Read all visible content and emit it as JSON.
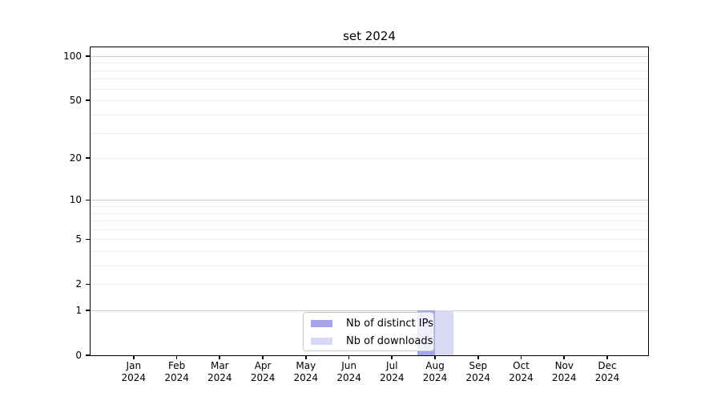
{
  "chart_data": {
    "type": "bar",
    "title": "set 2024",
    "categories": [
      "Jan",
      "Feb",
      "Mar",
      "Apr",
      "May",
      "Jun",
      "Jul",
      "Aug",
      "Sep",
      "Oct",
      "Nov",
      "Dec"
    ],
    "category_year": "2024",
    "series": [
      {
        "name": "Nb of distinct IPs",
        "color": "#a5a5ec",
        "values": [
          0,
          0,
          0,
          0,
          0,
          0,
          0,
          1,
          0,
          0,
          0,
          0
        ]
      },
      {
        "name": "Nb of downloads",
        "color": "#d9d9f6",
        "values": [
          0,
          0,
          0,
          0,
          0,
          0,
          0,
          1,
          0,
          0,
          0,
          0
        ]
      }
    ],
    "yticks": [
      0,
      1,
      2,
      5,
      10,
      20,
      50,
      100
    ],
    "gridlines_major": [
      1,
      10,
      100
    ],
    "gridlines_minor": [
      2,
      3,
      4,
      5,
      6,
      7,
      8,
      9,
      20,
      30,
      40,
      50,
      60,
      70,
      80,
      90
    ],
    "scale": "log1p",
    "ylim": [
      0,
      116
    ],
    "xlabel": "",
    "ylabel": "",
    "grid": true,
    "legend_position": "lower-center-inside"
  },
  "colors": {
    "background": "#ffffff",
    "spine": "#000000",
    "gridline_major": "#c8c8c8",
    "gridline_minor": "#ececec",
    "legend_border": "#cccccc"
  }
}
